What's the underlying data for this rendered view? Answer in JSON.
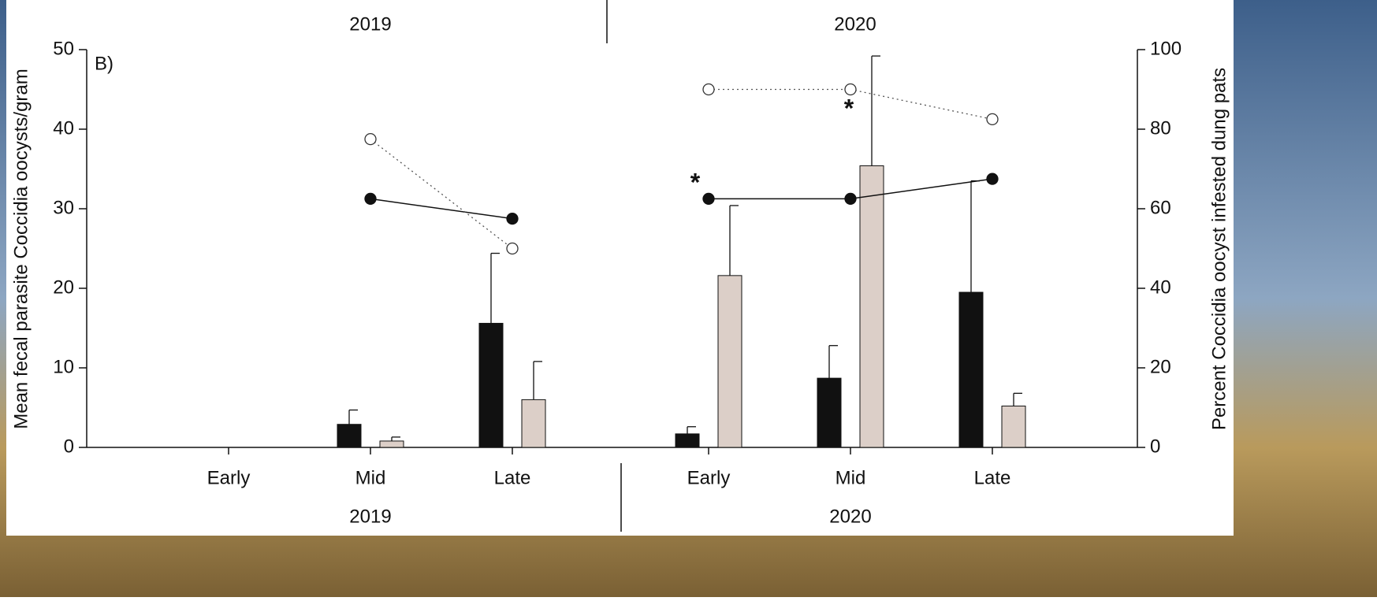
{
  "chart_data": {
    "type": "bar",
    "panel_label": "B)",
    "y_label": "Mean fecal parasite Coccidia oocysts/gram",
    "y2_label": "Percent Coccidia oocyst infested dung pats",
    "groups": [
      {
        "name": "2019",
        "categories": [
          "Early",
          "Mid",
          "Late"
        ]
      },
      {
        "name": "2020",
        "categories": [
          "Early",
          "Mid",
          "Late"
        ]
      }
    ],
    "ylim": [
      0,
      50
    ],
    "yticks": [
      0,
      10,
      20,
      30,
      40,
      50
    ],
    "y2lim": [
      0,
      100
    ],
    "y2ticks": [
      0,
      20,
      40,
      60,
      80,
      100
    ],
    "series": [
      {
        "type": "bar",
        "color": "#111111",
        "values": [
          null,
          2.9,
          15.6,
          1.7,
          8.7,
          19.5
        ],
        "errors": [
          null,
          1.8,
          8.8,
          0.9,
          4.1,
          14.0
        ]
      },
      {
        "type": "bar",
        "color": "#dccfc8",
        "values": [
          null,
          0.8,
          6.0,
          21.6,
          35.4,
          5.2
        ],
        "errors": [
          null,
          0.5,
          4.8,
          8.8,
          13.8,
          1.6
        ]
      },
      {
        "type": "line",
        "axis": "y2",
        "color": "#111111",
        "marker": "filled",
        "values": [
          null,
          62.5,
          57.5,
          62.5,
          62.5,
          67.5
        ]
      },
      {
        "type": "line",
        "axis": "y2",
        "color": "#555555",
        "marker": "open",
        "dashed": true,
        "values": [
          null,
          77.5,
          50,
          90,
          90,
          82.5
        ]
      }
    ],
    "annotations": [
      "*",
      "*"
    ]
  }
}
